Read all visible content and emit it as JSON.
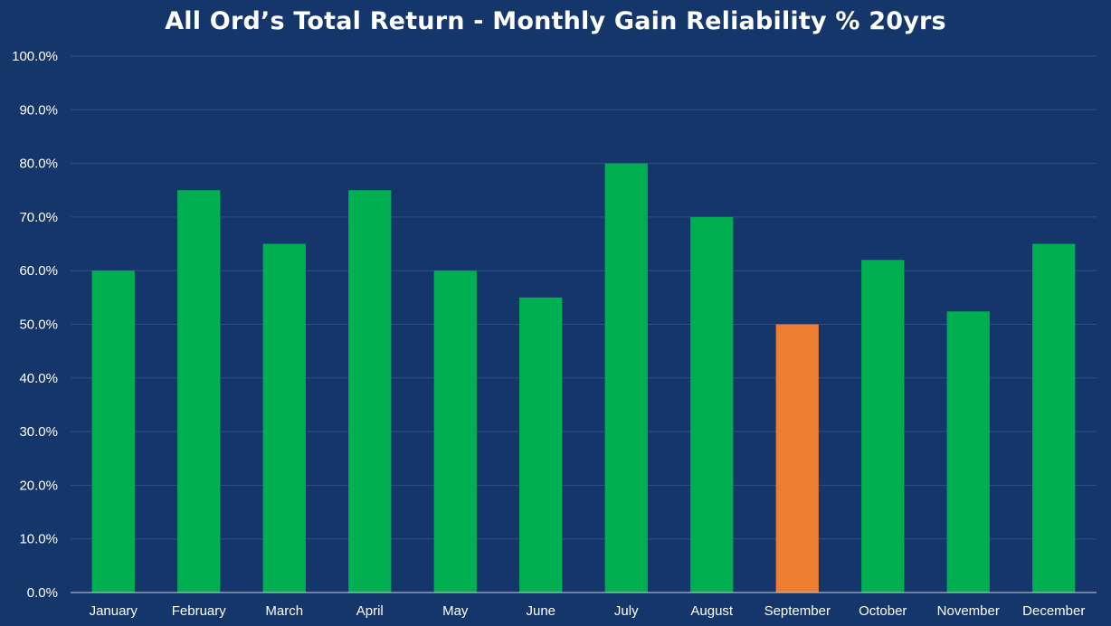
{
  "chart_data": {
    "type": "bar",
    "title": "All Ord’s Total Return - Monthly Gain Reliability % 20yrs",
    "xlabel": "",
    "ylabel": "",
    "categories": [
      "January",
      "February",
      "March",
      "April",
      "May",
      "June",
      "July",
      "August",
      "September",
      "October",
      "November",
      "December"
    ],
    "values": [
      60.0,
      75.0,
      65.0,
      75.0,
      60.0,
      55.0,
      80.0,
      70.0,
      50.0,
      62.0,
      52.4,
      65.0
    ],
    "ylim": [
      0,
      100
    ],
    "yticks": [
      0,
      10,
      20,
      30,
      40,
      50,
      60,
      70,
      80,
      90,
      100
    ],
    "ytick_labels": [
      "0.0%",
      "10.0%",
      "20.0%",
      "30.0%",
      "40.0%",
      "50.0%",
      "60.0%",
      "70.0%",
      "80.0%",
      "90.0%",
      "100.0%"
    ],
    "grid": true,
    "legend": "none",
    "colors": {
      "background": "#15366b",
      "bar": "#00b050",
      "highlight_bar": "#ed7d31",
      "text": "#ffffff"
    },
    "highlight_category": "September"
  }
}
